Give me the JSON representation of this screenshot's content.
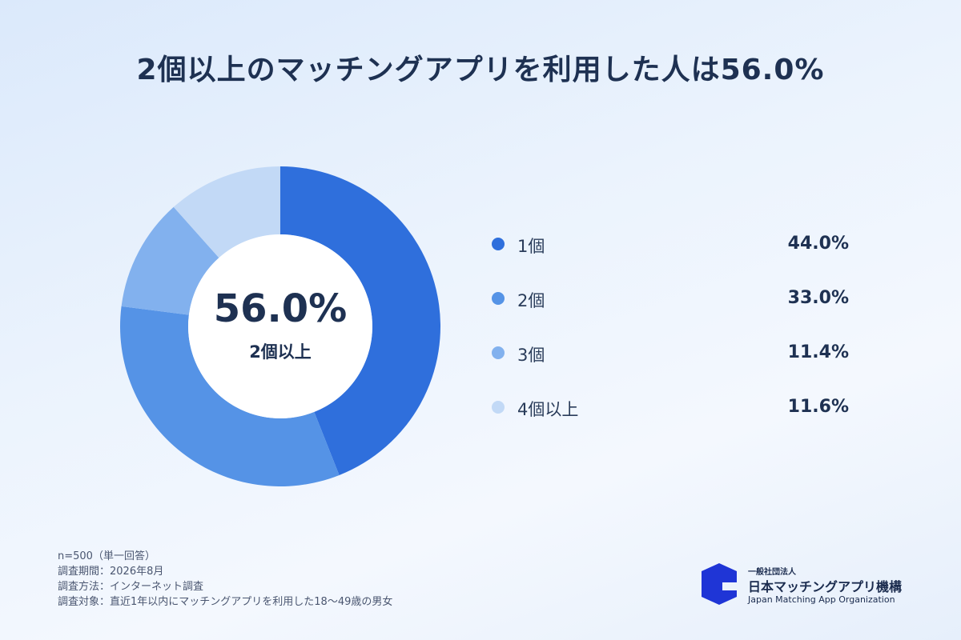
{
  "title": "2個以上のマッチングアプリを利用した人は56.0%",
  "center": {
    "value": "56.0%",
    "label": "2個以上"
  },
  "chart_data": {
    "type": "pie",
    "title": "2個以上のマッチングアプリを利用した人は56.0%",
    "donut": true,
    "categories": [
      "1個",
      "2個",
      "3個",
      "4個以上"
    ],
    "values": [
      44.0,
      33.0,
      11.4,
      11.6
    ],
    "value_labels": [
      "44.0%",
      "33.0%",
      "11.4%",
      "11.6%"
    ],
    "colors": [
      "#2f6fdc",
      "#5593e6",
      "#82b1ee",
      "#c2d9f6"
    ],
    "legend": "right"
  },
  "notes": [
    "n=500（単一回答）",
    "調査期間：2026年8月",
    "調査方法：インターネット調査",
    "調査対象：直近1年以内にマッチングアプリを利用した18〜49歳の男女"
  ],
  "logo": {
    "icon": "organization-logo-mark",
    "subtitle": "一般社団法人",
    "name": "日本マッチングアプリ機構",
    "english": "Japan Matching App Organization",
    "color": "#1f35d6"
  }
}
